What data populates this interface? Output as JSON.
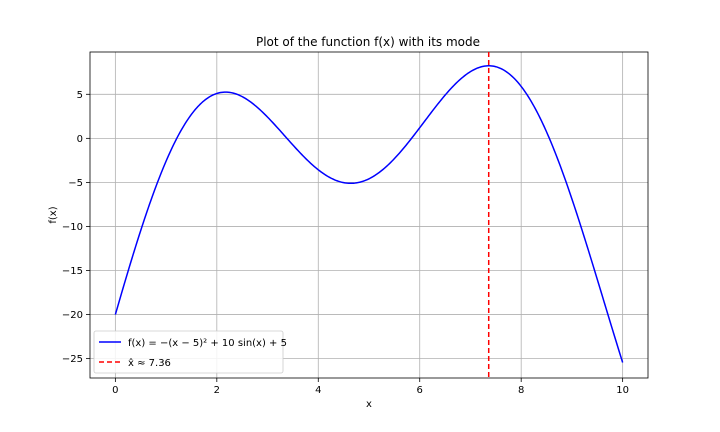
{
  "chart_data": {
    "type": "line",
    "title": "Plot of the function f(x) with its mode",
    "xlabel": "x",
    "ylabel": "f(x)",
    "xlim": [
      -0.5,
      10.5
    ],
    "ylim": [
      -27.2,
      9.8
    ],
    "xticks": [
      0,
      2,
      4,
      6,
      8,
      10
    ],
    "yticks": [
      -25,
      -20,
      -15,
      -10,
      -5,
      0,
      5
    ],
    "grid": true,
    "legend_position": "lower-left",
    "series": [
      {
        "name": "f(x) = −(x − 5)² + 10 sin(x) + 5",
        "color": "#0000ff",
        "style": "solid",
        "function": "-(x-5)^2 + 10*sin(x) + 5",
        "x_range": [
          0,
          10
        ]
      }
    ],
    "vlines": [
      {
        "name": "x̂ ≈ 7.36",
        "x": 7.36,
        "color": "#ff0000",
        "style": "dashed"
      }
    ]
  }
}
